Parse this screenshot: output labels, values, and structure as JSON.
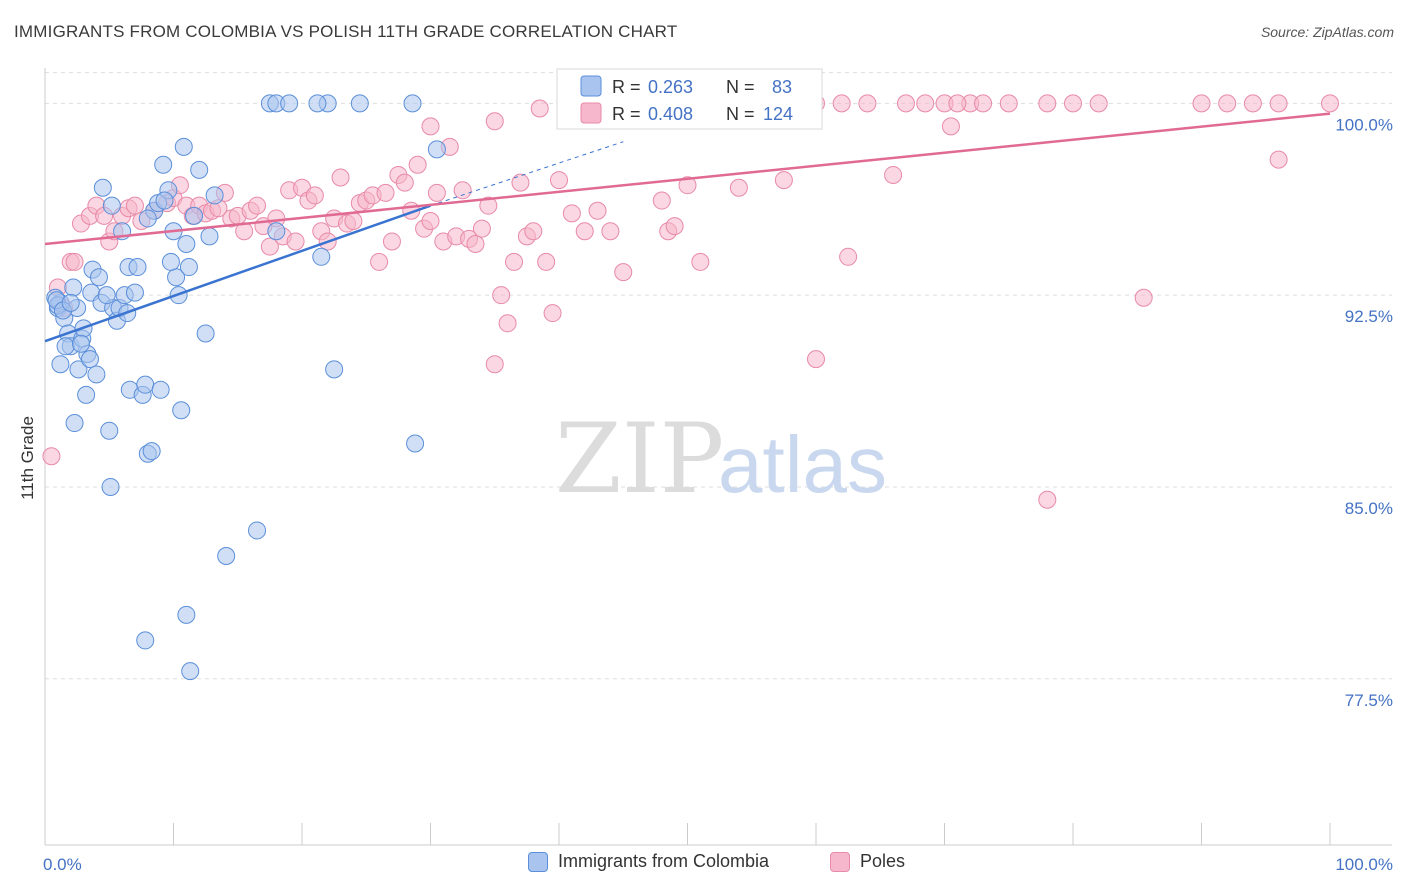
{
  "header": {
    "title": "IMMIGRANTS FROM COLOMBIA VS POLISH 11TH GRADE CORRELATION CHART",
    "source": "Source: ZipAtlas.com"
  },
  "watermark": {
    "zip": "ZIP",
    "atlas": "atlas"
  },
  "colors": {
    "blue_fill": "#a9c4ef",
    "blue_stroke": "#5b8fd9",
    "blue_line": "#3a74d0",
    "pink_fill": "#f6b6cb",
    "pink_stroke": "#e88aa8",
    "pink_line": "#e06a93",
    "tick": "#4472c4",
    "grid": "#dddddd"
  },
  "legend_box": {
    "r_label": "R =",
    "n_label": "N =",
    "series": [
      {
        "r": "0.263",
        "n": "83"
      },
      {
        "r": "0.408",
        "n": "124"
      }
    ]
  },
  "chart_data": {
    "type": "scatter",
    "xlabel": "",
    "ylabel": "11th Grade",
    "xlim": [
      0,
      100
    ],
    "ylim": [
      71.0,
      101.5
    ],
    "x_tick_labels": [
      "0.0%",
      "100.0%"
    ],
    "y_ticks": [
      100.0,
      92.5,
      85.0,
      77.5
    ],
    "y_tick_labels": [
      "100.0%",
      "92.5%",
      "85.0%",
      "77.5%"
    ],
    "grid": "horizontal dashed",
    "legend": "top-center (R/N box) and bottom (series names)",
    "series": [
      {
        "name": "Immigrants from Colombia",
        "trend": {
          "x": [
            0,
            30
          ],
          "y": [
            90.7,
            96.0
          ],
          "dashed_to": [
            45,
            98.5
          ]
        },
        "points": [
          [
            1.0,
            92.0
          ],
          [
            1.2,
            92.2
          ],
          [
            0.8,
            92.4
          ],
          [
            1.5,
            91.6
          ],
          [
            1.8,
            91.0
          ],
          [
            2.0,
            90.5
          ],
          [
            1.2,
            89.8
          ],
          [
            2.2,
            92.8
          ],
          [
            2.5,
            92.0
          ],
          [
            2.6,
            89.6
          ],
          [
            2.9,
            90.8
          ],
          [
            3.3,
            90.2
          ],
          [
            3.5,
            90.0
          ],
          [
            3.2,
            88.6
          ],
          [
            2.3,
            87.5
          ],
          [
            3.6,
            92.6
          ],
          [
            3.7,
            93.5
          ],
          [
            4.0,
            89.4
          ],
          [
            4.2,
            93.2
          ],
          [
            4.4,
            92.2
          ],
          [
            4.5,
            96.7
          ],
          [
            5.2,
            96.0
          ],
          [
            5.3,
            92.0
          ],
          [
            5.6,
            91.5
          ],
          [
            5.8,
            92.0
          ],
          [
            6.0,
            95.0
          ],
          [
            6.2,
            92.5
          ],
          [
            6.5,
            93.6
          ],
          [
            6.6,
            88.8
          ],
          [
            7.0,
            92.6
          ],
          [
            7.2,
            93.6
          ],
          [
            7.6,
            88.6
          ],
          [
            7.8,
            89.0
          ],
          [
            8.0,
            86.3
          ],
          [
            8.3,
            86.4
          ],
          [
            8.5,
            95.8
          ],
          [
            8.8,
            96.1
          ],
          [
            9.0,
            88.8
          ],
          [
            9.2,
            97.6
          ],
          [
            9.6,
            96.6
          ],
          [
            10.0,
            95.0
          ],
          [
            10.2,
            93.2
          ],
          [
            10.4,
            92.5
          ],
          [
            10.6,
            88.0
          ],
          [
            10.8,
            98.3
          ],
          [
            11.0,
            94.5
          ],
          [
            11.2,
            93.6
          ],
          [
            12.0,
            97.4
          ],
          [
            12.8,
            94.8
          ],
          [
            8.0,
            95.5
          ],
          [
            9.3,
            96.2
          ],
          [
            5.0,
            87.2
          ],
          [
            5.1,
            85.0
          ],
          [
            7.8,
            79.0
          ],
          [
            11.0,
            80.0
          ],
          [
            11.3,
            77.8
          ],
          [
            14.1,
            82.3
          ],
          [
            16.5,
            83.3
          ],
          [
            17.5,
            100.0
          ],
          [
            18.0,
            100.0
          ],
          [
            19.0,
            100.0
          ],
          [
            22.0,
            100.0
          ],
          [
            24.5,
            100.0
          ],
          [
            21.2,
            100.0
          ],
          [
            28.6,
            100.0
          ],
          [
            30.5,
            98.2
          ],
          [
            28.8,
            86.7
          ],
          [
            22.5,
            89.6
          ],
          [
            18.0,
            95.0
          ],
          [
            21.5,
            94.0
          ],
          [
            12.5,
            91.0
          ],
          [
            1.0,
            92.1
          ],
          [
            0.9,
            92.3
          ],
          [
            1.4,
            91.9
          ],
          [
            2.0,
            92.2
          ],
          [
            3.0,
            91.2
          ],
          [
            1.6,
            90.5
          ],
          [
            2.8,
            90.6
          ],
          [
            4.8,
            92.5
          ],
          [
            6.4,
            91.8
          ],
          [
            9.8,
            93.8
          ],
          [
            11.6,
            95.6
          ],
          [
            13.2,
            96.4
          ]
        ]
      },
      {
        "name": "Poles",
        "trend": {
          "x": [
            0,
            100
          ],
          "y": [
            94.5,
            99.6
          ]
        },
        "points": [
          [
            0.5,
            86.2
          ],
          [
            1.0,
            92.8
          ],
          [
            1.5,
            92.0
          ],
          [
            2.0,
            93.8
          ],
          [
            2.3,
            93.8
          ],
          [
            2.8,
            95.3
          ],
          [
            3.5,
            95.6
          ],
          [
            4.0,
            96.0
          ],
          [
            4.6,
            95.6
          ],
          [
            5.0,
            94.6
          ],
          [
            5.4,
            95.0
          ],
          [
            6.0,
            95.6
          ],
          [
            6.5,
            95.9
          ],
          [
            7.0,
            96.0
          ],
          [
            7.5,
            95.4
          ],
          [
            8.5,
            95.8
          ],
          [
            9.5,
            96.1
          ],
          [
            10.0,
            96.3
          ],
          [
            10.5,
            96.8
          ],
          [
            11.0,
            96.0
          ],
          [
            11.5,
            95.6
          ],
          [
            12.0,
            96.0
          ],
          [
            12.5,
            95.7
          ],
          [
            13.0,
            95.8
          ],
          [
            13.5,
            95.9
          ],
          [
            14.0,
            96.5
          ],
          [
            14.5,
            95.5
          ],
          [
            15.0,
            95.6
          ],
          [
            15.5,
            95.0
          ],
          [
            16.0,
            95.8
          ],
          [
            16.5,
            96.0
          ],
          [
            17.0,
            95.2
          ],
          [
            17.5,
            94.4
          ],
          [
            18.0,
            95.5
          ],
          [
            18.5,
            94.8
          ],
          [
            19.0,
            96.6
          ],
          [
            19.5,
            94.6
          ],
          [
            20.0,
            96.7
          ],
          [
            20.5,
            96.2
          ],
          [
            21.0,
            96.4
          ],
          [
            21.5,
            95.0
          ],
          [
            22.0,
            94.6
          ],
          [
            22.5,
            95.5
          ],
          [
            23.0,
            97.1
          ],
          [
            23.5,
            95.3
          ],
          [
            24.0,
            95.4
          ],
          [
            24.5,
            96.1
          ],
          [
            25.0,
            96.2
          ],
          [
            25.5,
            96.4
          ],
          [
            26.0,
            93.8
          ],
          [
            26.5,
            96.5
          ],
          [
            27.0,
            94.6
          ],
          [
            27.5,
            97.2
          ],
          [
            28.0,
            96.9
          ],
          [
            28.5,
            95.8
          ],
          [
            29.0,
            97.6
          ],
          [
            29.5,
            95.1
          ],
          [
            30.0,
            95.4
          ],
          [
            30.5,
            96.5
          ],
          [
            31.0,
            94.6
          ],
          [
            31.5,
            98.3
          ],
          [
            32.0,
            94.8
          ],
          [
            32.5,
            96.6
          ],
          [
            33.0,
            94.7
          ],
          [
            33.5,
            94.5
          ],
          [
            34.0,
            95.1
          ],
          [
            34.5,
            96.0
          ],
          [
            35.0,
            89.8
          ],
          [
            35.5,
            92.5
          ],
          [
            36.0,
            91.4
          ],
          [
            36.5,
            93.8
          ],
          [
            37.0,
            96.9
          ],
          [
            37.5,
            94.8
          ],
          [
            38.0,
            95.0
          ],
          [
            38.5,
            99.8
          ],
          [
            39.0,
            93.8
          ],
          [
            39.5,
            91.8
          ],
          [
            40.0,
            97.0
          ],
          [
            41.0,
            95.7
          ],
          [
            42.0,
            95.0
          ],
          [
            43.0,
            95.8
          ],
          [
            44.0,
            95.0
          ],
          [
            45.0,
            93.4
          ],
          [
            45.5,
            99.5
          ],
          [
            46.0,
            100.0
          ],
          [
            47.0,
            100.0
          ],
          [
            48.0,
            96.2
          ],
          [
            48.5,
            95.0
          ],
          [
            49.0,
            95.2
          ],
          [
            50.0,
            96.8
          ],
          [
            51.0,
            93.8
          ],
          [
            52.0,
            100.0
          ],
          [
            54.0,
            96.7
          ],
          [
            55.0,
            100.0
          ],
          [
            57.0,
            100.0
          ],
          [
            60.0,
            100.0
          ],
          [
            62.0,
            100.0
          ],
          [
            64.0,
            100.0
          ],
          [
            67.0,
            100.0
          ],
          [
            68.5,
            100.0
          ],
          [
            70.0,
            100.0
          ],
          [
            70.5,
            99.1
          ],
          [
            72.0,
            100.0
          ],
          [
            75.0,
            100.0
          ],
          [
            78.0,
            100.0
          ],
          [
            80.0,
            100.0
          ],
          [
            82.0,
            100.0
          ],
          [
            85.5,
            92.4
          ],
          [
            90.0,
            100.0
          ],
          [
            92.0,
            100.0
          ],
          [
            94.0,
            100.0
          ],
          [
            96.0,
            100.0
          ],
          [
            100.0,
            100.0
          ],
          [
            96.0,
            97.8
          ],
          [
            78.0,
            84.5
          ],
          [
            60.0,
            90.0
          ],
          [
            62.5,
            94.0
          ],
          [
            57.5,
            97.0
          ],
          [
            66.0,
            97.2
          ],
          [
            30.0,
            99.1
          ],
          [
            35.0,
            99.3
          ],
          [
            40.5,
            100.0
          ],
          [
            43.5,
            100.0
          ],
          [
            58.0,
            100.0
          ],
          [
            71.0,
            100.0
          ],
          [
            73.0,
            100.0
          ]
        ]
      }
    ],
    "legend_entries": [
      "Immigrants from Colombia",
      "Poles"
    ]
  }
}
